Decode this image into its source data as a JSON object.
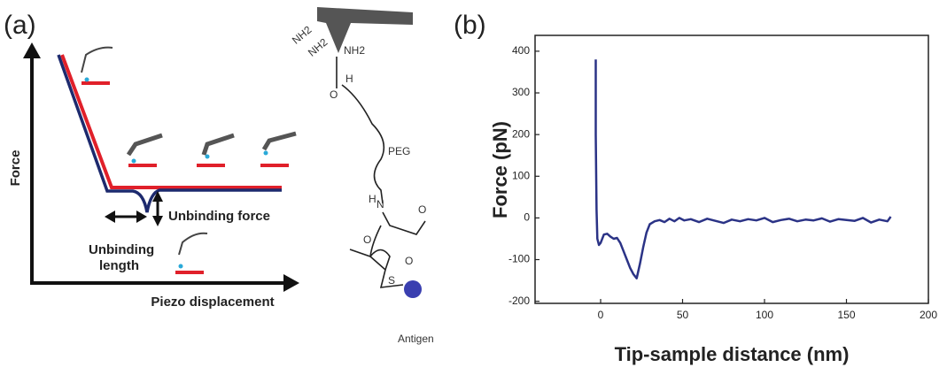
{
  "panel_a": {
    "label": "(a)",
    "y_axis": "Force",
    "x_axis": "Piezo displacement",
    "unbinding_force": "Unbinding force",
    "unbinding_length": [
      "Unbinding",
      "length"
    ],
    "chem": {
      "amine_1": "NH2",
      "amine_2": "NH2",
      "amine_3": "NH2",
      "carbonyl_o": "O",
      "carbonyl_h": "H",
      "peg": "PEG",
      "amide_n": "N",
      "amide_h": "H",
      "amide_o": "O",
      "ring_o1": "O",
      "ring_o2": "O",
      "sulfur": "S",
      "antigen": "Antigen"
    }
  },
  "chart_data": {
    "type": "line",
    "label": "(b)",
    "xlabel": "Tip-sample distance (nm)",
    "ylabel": "Force (pN)",
    "xlim": [
      -40,
      200
    ],
    "ylim": [
      -205,
      438
    ],
    "xticks": [
      0,
      50,
      100,
      150,
      200
    ],
    "yticks": [
      -200,
      -100,
      0,
      100,
      200,
      300,
      400
    ],
    "x": [
      -3,
      -3,
      -2.5,
      -2,
      -1,
      0,
      2,
      4,
      6,
      8,
      10,
      12,
      14,
      16,
      18,
      20,
      22,
      24,
      26,
      28,
      30,
      33,
      36,
      39,
      42,
      45,
      48,
      51,
      55,
      60,
      65,
      70,
      75,
      80,
      85,
      90,
      95,
      100,
      105,
      110,
      115,
      120,
      125,
      130,
      135,
      140,
      145,
      150,
      155,
      160,
      165,
      170,
      175,
      177
    ],
    "values": [
      380,
      200,
      20,
      -50,
      -65,
      -60,
      -40,
      -38,
      -45,
      -50,
      -48,
      -60,
      -80,
      -100,
      -120,
      -135,
      -145,
      -110,
      -70,
      -35,
      -15,
      -8,
      -5,
      -10,
      -2,
      -8,
      0,
      -6,
      -3,
      -10,
      -2,
      -7,
      -12,
      -4,
      -8,
      -3,
      -6,
      0,
      -10,
      -5,
      -2,
      -8,
      -4,
      -6,
      -1,
      -9,
      -3,
      -5,
      -7,
      0,
      -11,
      -4,
      -8,
      3
    ],
    "color": "#2b3386"
  }
}
